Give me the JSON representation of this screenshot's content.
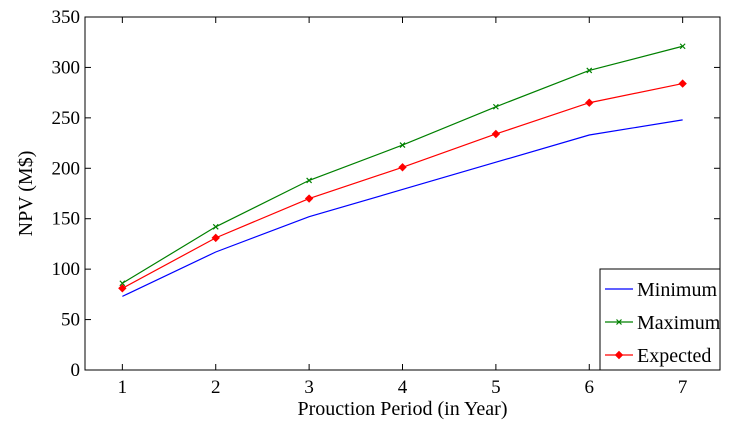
{
  "chart_data": {
    "type": "line",
    "title": "",
    "xlabel": "Prouction Period (in Year)",
    "ylabel": "NPV (M$)",
    "x": [
      1,
      2,
      3,
      4,
      5,
      6,
      7
    ],
    "xlim": [
      0.6,
      7.4
    ],
    "ylim": [
      0,
      350
    ],
    "xticks": [
      1,
      2,
      3,
      4,
      5,
      6,
      7
    ],
    "yticks": [
      0,
      50,
      100,
      150,
      200,
      250,
      300,
      350
    ],
    "grid": false,
    "legend_position": "bottom-right",
    "series": [
      {
        "name": "Minimum",
        "color": "#0000ff",
        "marker": "none",
        "values": [
          73,
          117,
          152,
          179,
          206,
          233,
          248
        ]
      },
      {
        "name": "Maximum",
        "color": "#008000",
        "marker": "x",
        "values": [
          86,
          142,
          188,
          223,
          261,
          297,
          321
        ]
      },
      {
        "name": "Expected",
        "color": "#ff0000",
        "marker": "diamond",
        "values": [
          81,
          131,
          170,
          201,
          234,
          265,
          284
        ]
      }
    ]
  }
}
